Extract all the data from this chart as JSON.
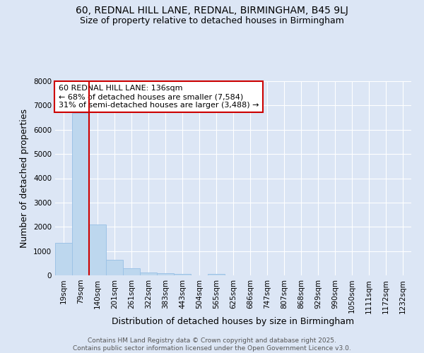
{
  "title": "60, REDNAL HILL LANE, REDNAL, BIRMINGHAM, B45 9LJ",
  "subtitle": "Size of property relative to detached houses in Birmingham",
  "xlabel": "Distribution of detached houses by size in Birmingham",
  "ylabel": "Number of detached properties",
  "categories": [
    "19sqm",
    "79sqm",
    "140sqm",
    "201sqm",
    "261sqm",
    "322sqm",
    "383sqm",
    "443sqm",
    "504sqm",
    "565sqm",
    "625sqm",
    "686sqm",
    "747sqm",
    "807sqm",
    "868sqm",
    "929sqm",
    "990sqm",
    "1050sqm",
    "1111sqm",
    "1172sqm",
    "1232sqm"
  ],
  "values": [
    1340,
    6680,
    2100,
    650,
    300,
    120,
    75,
    60,
    0,
    60,
    0,
    0,
    0,
    0,
    0,
    0,
    0,
    0,
    0,
    0,
    0
  ],
  "bar_color": "#bdd7ee",
  "bar_edge_color": "#9dc3e6",
  "vline_x": 2,
  "vline_color": "#cc0000",
  "annotation_text": "60 REDNAL HILL LANE: 136sqm\n← 68% of detached houses are smaller (7,584)\n31% of semi-detached houses are larger (3,488) →",
  "annotation_box_color": "#ffffff",
  "annotation_box_edge": "#cc0000",
  "ylim": [
    0,
    8000
  ],
  "yticks": [
    0,
    1000,
    2000,
    3000,
    4000,
    5000,
    6000,
    7000,
    8000
  ],
  "background_color": "#dce6f5",
  "plot_bg_color": "#dce6f5",
  "grid_color": "#ffffff",
  "footer": "Contains HM Land Registry data © Crown copyright and database right 2025.\nContains public sector information licensed under the Open Government Licence v3.0.",
  "title_fontsize": 10,
  "subtitle_fontsize": 9,
  "axis_label_fontsize": 9,
  "tick_fontsize": 7.5,
  "annotation_fontsize": 8,
  "footer_fontsize": 6.5
}
